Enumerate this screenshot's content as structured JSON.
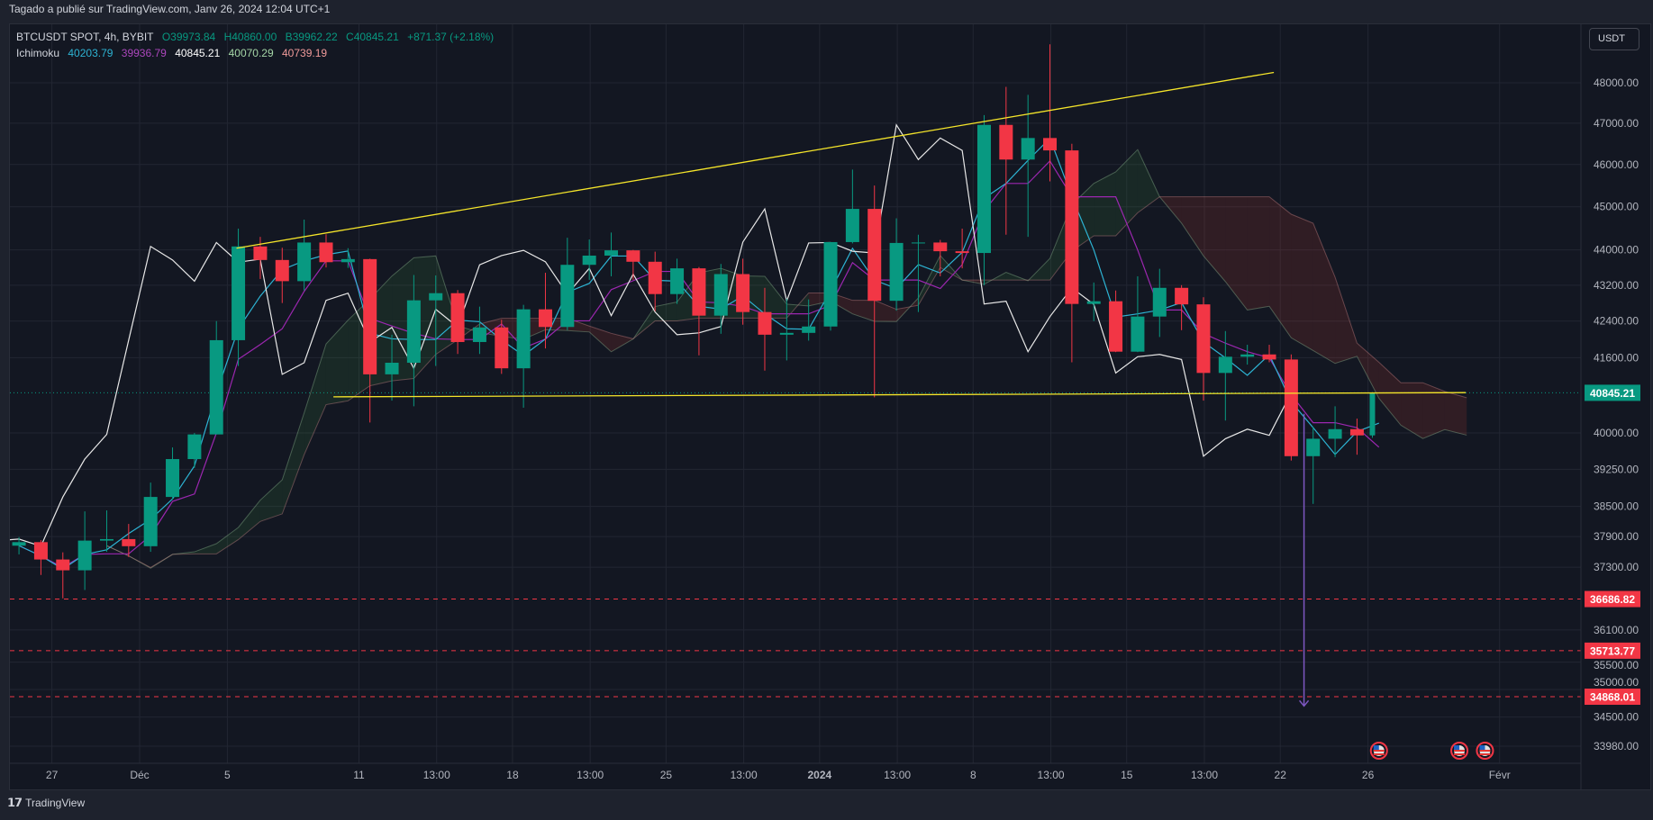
{
  "header": {
    "published": "Tagado a publié sur TradingView.com, Janv 26, 2024 12:04 UTC+1"
  },
  "legend": {
    "symbol": "BTCUSDT SPOT, 4h, BYBIT",
    "open": "O39973.84",
    "high": "H40860.00",
    "low": "B39962.22",
    "close": "C40845.21",
    "change": "+871.37 (+2.18%)",
    "indicator": "Ichimoku",
    "values": [
      "40203.79",
      "39936.79",
      "40845.21",
      "40070.29",
      "40739.19"
    ]
  },
  "currency_button": "USDT",
  "footer": {
    "brand": "TradingView"
  },
  "colors": {
    "up": "#089981",
    "down": "#f23645",
    "tenkan": "#2db3d3",
    "kijun": "#9c27b0",
    "lagging": "#e8e8e8",
    "spanA": "#a5d6a7",
    "spanB": "#ef9a9a",
    "trendline": "#f5e52a",
    "level": "#f23645",
    "arrow": "#7e57c2",
    "bg": "#131722"
  },
  "chart_data": {
    "type": "candlestick",
    "interval": "4h (approximated here as daily OHLC)",
    "scale": "log",
    "ylim": [
      33700,
      49200
    ],
    "grid": true,
    "price_ticks": [
      "48000.00",
      "47000.00",
      "46000.00",
      "45000.00",
      "44000.00",
      "43200.00",
      "42400.00",
      "41600.00",
      "40000.00",
      "39250.00",
      "38500.00",
      "37900.00",
      "37300.00",
      "36100.00",
      "35500.00",
      "35000.00",
      "34500.00",
      "33980.00"
    ],
    "time_ticks": [
      {
        "label": "27",
        "date": "2023-11-27"
      },
      {
        "label": "Déc",
        "date": "2023-12-01"
      },
      {
        "label": "5",
        "date": "2023-12-05"
      },
      {
        "label": "11",
        "date": "2023-12-11"
      },
      {
        "label": "13:00",
        "date": "2023-12-14T13:00"
      },
      {
        "label": "18",
        "date": "2023-12-18"
      },
      {
        "label": "13:00",
        "date": "2023-12-21T13:00"
      },
      {
        "label": "25",
        "date": "2023-12-25"
      },
      {
        "label": "13:00",
        "date": "2023-12-28T13:00"
      },
      {
        "label": "2024",
        "date": "2024-01-01"
      },
      {
        "label": "13:00",
        "date": "2024-01-04T13:00"
      },
      {
        "label": "8",
        "date": "2024-01-08"
      },
      {
        "label": "13:00",
        "date": "2024-01-11T13:00"
      },
      {
        "label": "15",
        "date": "2024-01-15"
      },
      {
        "label": "13:00",
        "date": "2024-01-18T13:00"
      },
      {
        "label": "22",
        "date": "2024-01-22"
      },
      {
        "label": "26",
        "date": "2024-01-26"
      },
      {
        "label": "Févr",
        "date": "2024-02-01"
      }
    ],
    "last_price": {
      "value": 40845.21,
      "label": "40845.21"
    },
    "levels": [
      {
        "value": 36686.82,
        "label": "36686.82"
      },
      {
        "value": 35713.77,
        "label": "35713.77"
      },
      {
        "value": 34868.01,
        "label": "34868.01"
      }
    ],
    "trendlines": [
      {
        "from": {
          "date": "2023-12-05T10:00",
          "price": 44040
        },
        "to": {
          "date": "2024-01-21T17:00",
          "price": 48260
        }
      },
      {
        "from": {
          "date": "2023-12-09T20:00",
          "price": 40760
        },
        "to": {
          "date": "2024-01-30T11:00",
          "price": 40850
        }
      }
    ],
    "arrow": {
      "date": "2024-01-23T02:00",
      "from": 40400,
      "to": 34700
    },
    "events": [
      {
        "date": "2024-01-26T12:00",
        "icon": "us-flag-icon"
      },
      {
        "date": "2024-01-30T04:00",
        "icon": "us-flag-icon"
      },
      {
        "date": "2024-01-31T08:00",
        "icon": "us-flag-icon"
      }
    ],
    "ohlc": [
      [
        "2023-11-25",
        37720,
        37890,
        37550,
        37790
      ],
      [
        "2023-11-26",
        37790,
        37830,
        37150,
        37450
      ],
      [
        "2023-11-27",
        37450,
        37590,
        36700,
        37240
      ],
      [
        "2023-11-28",
        37240,
        38400,
        36860,
        37820
      ],
      [
        "2023-11-29",
        37820,
        38420,
        37600,
        37850
      ],
      [
        "2023-11-30",
        37850,
        38150,
        37500,
        37710
      ],
      [
        "2023-12-01",
        37710,
        38980,
        37600,
        38690
      ],
      [
        "2023-12-02",
        38690,
        39700,
        38640,
        39460
      ],
      [
        "2023-12-03",
        39460,
        40000,
        39280,
        39970
      ],
      [
        "2023-12-04",
        39970,
        42400,
        39970,
        41980
      ],
      [
        "2023-12-05",
        41980,
        44490,
        41420,
        44080
      ],
      [
        "2023-12-06",
        44080,
        44300,
        43340,
        43770
      ],
      [
        "2023-12-07",
        43770,
        44050,
        42800,
        43290
      ],
      [
        "2023-12-08",
        43290,
        44700,
        43080,
        44170
      ],
      [
        "2023-12-09",
        44170,
        44360,
        43600,
        43720
      ],
      [
        "2023-12-10",
        43720,
        44040,
        43590,
        43790
      ],
      [
        "2023-12-11",
        43790,
        43800,
        40220,
        41240
      ],
      [
        "2023-12-12",
        41240,
        42100,
        40680,
        41490
      ],
      [
        "2023-12-13",
        41490,
        43430,
        40560,
        42860
      ],
      [
        "2023-12-14",
        42860,
        43420,
        41420,
        43020
      ],
      [
        "2023-12-15",
        43020,
        43090,
        41680,
        41940
      ],
      [
        "2023-12-16",
        41940,
        42720,
        41680,
        42260
      ],
      [
        "2023-12-17",
        42260,
        42430,
        41250,
        41370
      ],
      [
        "2023-12-18",
        41370,
        42760,
        40530,
        42660
      ],
      [
        "2023-12-19",
        42660,
        43480,
        41800,
        42270
      ],
      [
        "2023-12-20",
        42270,
        44280,
        42200,
        43660
      ],
      [
        "2023-12-21",
        43660,
        44240,
        43320,
        43870
      ],
      [
        "2023-12-22",
        43870,
        44400,
        43400,
        43990
      ],
      [
        "2023-12-23",
        43990,
        44000,
        43320,
        43730
      ],
      [
        "2023-12-24",
        43730,
        43960,
        42620,
        43000
      ],
      [
        "2023-12-25",
        43000,
        43800,
        42780,
        43580
      ],
      [
        "2023-12-26",
        43580,
        43610,
        41650,
        42520
      ],
      [
        "2023-12-27",
        42520,
        43680,
        42120,
        43450
      ],
      [
        "2023-12-28",
        43450,
        43800,
        42320,
        42600
      ],
      [
        "2023-12-29",
        42600,
        43140,
        41320,
        42100
      ],
      [
        "2023-12-30",
        42100,
        42900,
        41540,
        42140
      ],
      [
        "2023-12-31",
        42140,
        42880,
        41970,
        42280
      ],
      [
        "2024-01-01",
        42280,
        44180,
        42190,
        44180
      ],
      [
        "2024-01-02",
        44180,
        45880,
        44150,
        44950
      ],
      [
        "2024-01-03",
        44950,
        45500,
        40750,
        42850
      ],
      [
        "2024-01-04",
        42850,
        44730,
        42630,
        44160
      ],
      [
        "2024-01-05",
        44160,
        44350,
        42600,
        44170
      ],
      [
        "2024-01-06",
        44170,
        44230,
        43400,
        43970
      ],
      [
        "2024-01-07",
        43970,
        44490,
        43580,
        43930
      ],
      [
        "2024-01-08",
        43930,
        47200,
        43200,
        46960
      ],
      [
        "2024-01-09",
        46960,
        47900,
        44350,
        46120
      ],
      [
        "2024-01-10",
        46120,
        47700,
        44300,
        46640
      ],
      [
        "2024-01-11",
        46640,
        48970,
        45600,
        46340
      ],
      [
        "2024-01-12",
        46340,
        46500,
        41500,
        42780
      ],
      [
        "2024-01-13",
        42780,
        43260,
        42400,
        42840
      ],
      [
        "2024-01-14",
        42840,
        43080,
        41720,
        41730
      ],
      [
        "2024-01-15",
        41730,
        43400,
        41720,
        42500
      ],
      [
        "2024-01-16",
        42500,
        43570,
        42050,
        43140
      ],
      [
        "2024-01-17",
        43140,
        43200,
        42200,
        42770
      ],
      [
        "2024-01-18",
        42770,
        42930,
        40680,
        41270
      ],
      [
        "2024-01-19",
        41270,
        42180,
        40260,
        41620
      ],
      [
        "2024-01-20",
        41620,
        41880,
        41450,
        41670
      ],
      [
        "2024-01-21",
        41670,
        41880,
        41500,
        41560
      ],
      [
        "2024-01-22",
        41560,
        41670,
        39430,
        39520
      ],
      [
        "2024-01-23",
        39520,
        40130,
        38550,
        39880
      ],
      [
        "2024-01-24",
        39880,
        40560,
        39500,
        40080
      ],
      [
        "2024-01-25",
        40080,
        40300,
        39550,
        39950
      ],
      [
        "2024-01-26",
        39950,
        40860,
        39900,
        40845.21
      ]
    ]
  }
}
